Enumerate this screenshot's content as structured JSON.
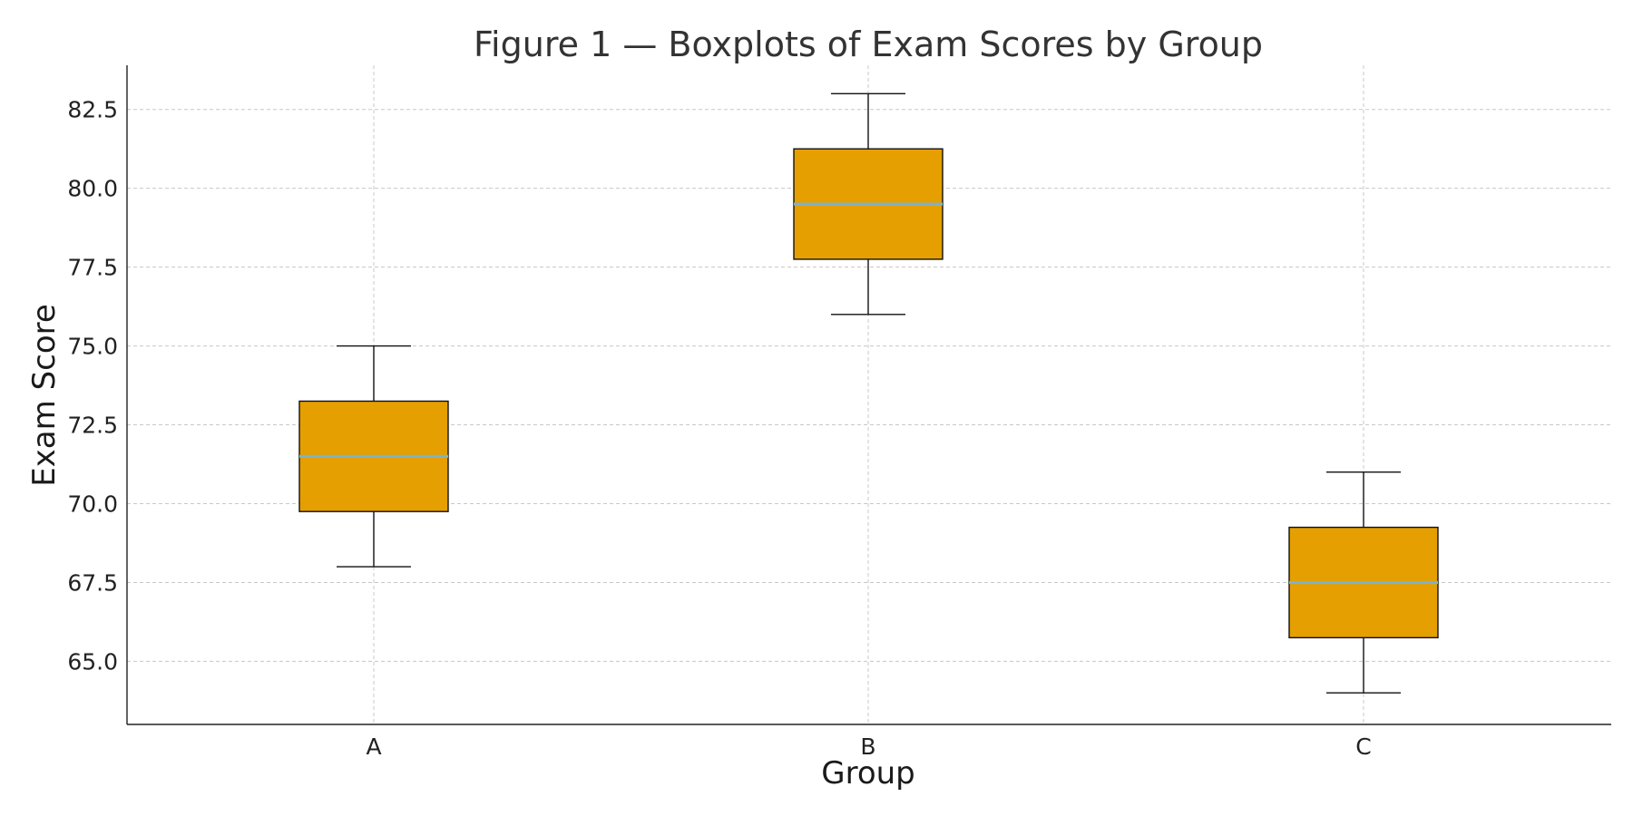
{
  "chart_data": {
    "type": "boxplot",
    "title": "Figure 1 — Boxplots of Exam Scores by Group",
    "xlabel": "Group",
    "ylabel": "Exam Score",
    "categories": [
      "A",
      "B",
      "C"
    ],
    "boxes": [
      {
        "category": "A",
        "whisker_low": 68.0,
        "q1": 69.75,
        "median": 71.5,
        "q3": 73.25,
        "whisker_high": 75.0
      },
      {
        "category": "B",
        "whisker_low": 76.0,
        "q1": 77.75,
        "median": 79.5,
        "q3": 81.25,
        "whisker_high": 83.0
      },
      {
        "category": "C",
        "whisker_low": 64.0,
        "q1": 65.75,
        "median": 67.5,
        "q3": 69.25,
        "whisker_high": 71.0
      }
    ],
    "ylim": [
      63.0,
      83.9
    ],
    "yticks": [
      65.0,
      67.5,
      70.0,
      72.5,
      75.0,
      77.5,
      80.0,
      82.5
    ],
    "ytick_labels": [
      "65.0",
      "67.5",
      "70.0",
      "72.5",
      "75.0",
      "77.5",
      "80.0",
      "82.5"
    ],
    "grid": true,
    "colors": {
      "box_fill": "#e69f00",
      "median": "#7fb2c8"
    }
  }
}
